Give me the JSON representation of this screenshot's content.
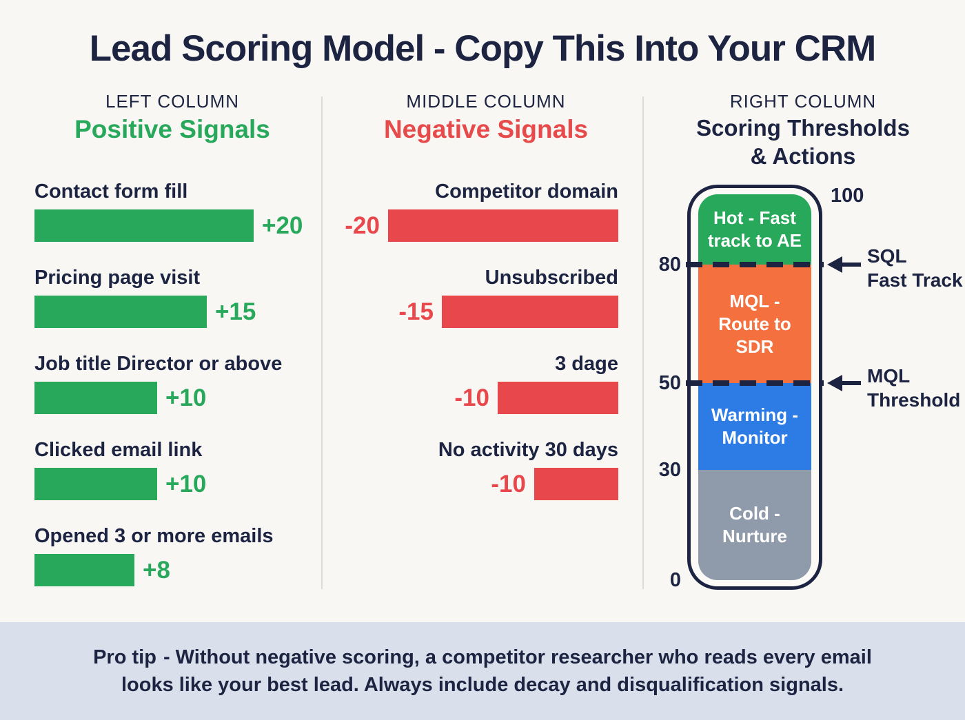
{
  "title": "Lead Scoring Model - Copy This Into Your CRM",
  "colors": {
    "navy": "#1c2442",
    "green": "#27a85b",
    "red": "#e8484b",
    "orange": "#f4713f",
    "blue": "#2d7ce6",
    "gray": "#8f9aaa",
    "footer_background": "#d9e0ec",
    "page_background": "#f8f7f4"
  },
  "columns": {
    "left": {
      "kicker": "LEFT COLUMN",
      "heading": "Positive Signals",
      "items": [
        {
          "label": "Contact form fill",
          "value": "+20"
        },
        {
          "label": "Pricing page visit",
          "value": "+15"
        },
        {
          "label": "Job title Director or above",
          "value": "+10"
        },
        {
          "label": "Clicked email link",
          "value": "+10"
        },
        {
          "label": "Opened 3 or more emails",
          "value": "+8"
        }
      ]
    },
    "middle": {
      "kicker": "MIDDLE COLUMN",
      "heading": "Negative Signals",
      "items": [
        {
          "label": "Competitor domain",
          "value": "-20"
        },
        {
          "label": "Unsubscribed",
          "value": "-15"
        },
        {
          "label": "3 dage",
          "value": "-10"
        },
        {
          "label": "No activity 30 days",
          "value": "-10"
        }
      ]
    },
    "right": {
      "kicker": "RIGHT COLUMN",
      "heading_line1": "Scoring Thresholds",
      "heading_line2": "& Actions",
      "scale": [
        "100",
        "80",
        "50",
        "30",
        "0"
      ],
      "zones": [
        {
          "lines": [
            "Hot - Fast",
            "track to AE"
          ],
          "color": "#27a85b",
          "range": "80-100"
        },
        {
          "lines": [
            "MQL -",
            "Route to",
            "SDR"
          ],
          "color": "#f4713f",
          "range": "50-80"
        },
        {
          "lines": [
            "Warming -",
            "Monitor"
          ],
          "color": "#2d7ce6",
          "range": "30-50"
        },
        {
          "lines": [
            "Cold -",
            "Nurture"
          ],
          "color": "#8f9aaa",
          "range": "0-30"
        }
      ],
      "annotations": [
        {
          "lines": [
            "SQL",
            "Fast Track"
          ],
          "at": "80"
        },
        {
          "lines": [
            "MQL",
            "Threshold"
          ],
          "at": "50"
        }
      ]
    }
  },
  "footer": {
    "lead": "Pro tip",
    "line1_rest": "- Without negative scoring, a competitor researcher who reads every email",
    "line2": "looks like your best lead. Always include decay and disqualification signals."
  },
  "chart_data": [
    {
      "type": "bar",
      "title": "Positive Signals",
      "orientation": "horizontal",
      "categories": [
        "Contact form fill",
        "Pricing page visit",
        "Job title Director or above",
        "Clicked email link",
        "Opened 3 or more emails"
      ],
      "values": [
        20,
        15,
        10,
        10,
        8
      ],
      "bar_color": "#27a85b"
    },
    {
      "type": "bar",
      "title": "Negative Signals",
      "orientation": "horizontal",
      "categories": [
        "Competitor domain",
        "Unsubscribed",
        "3 dage",
        "No activity 30 days"
      ],
      "values": [
        -20,
        -15,
        -10,
        -10
      ],
      "bar_color": "#e8484b"
    },
    {
      "type": "table",
      "title": "Scoring Thresholds & Actions",
      "scale_range": [
        0,
        100
      ],
      "scale_ticks": [
        0,
        30,
        50,
        80,
        100
      ],
      "rows": [
        {
          "range": "80-100",
          "action": "Hot - Fast track to AE",
          "color": "#27a85b"
        },
        {
          "range": "50-80",
          "action": "MQL - Route to SDR",
          "color": "#f4713f"
        },
        {
          "range": "30-50",
          "action": "Warming - Monitor",
          "color": "#2d7ce6"
        },
        {
          "range": "0-30",
          "action": "Cold - Nurture",
          "color": "#8f9aaa"
        }
      ],
      "thresholds": [
        {
          "value": 80,
          "label": "SQL Fast Track"
        },
        {
          "value": 50,
          "label": "MQL Threshold"
        }
      ]
    }
  ]
}
